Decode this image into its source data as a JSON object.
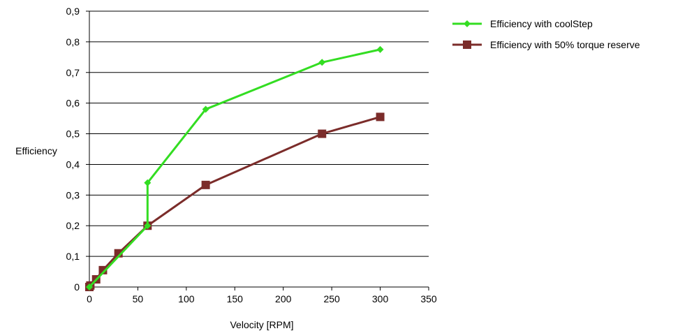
{
  "chart_data": {
    "type": "line",
    "title": "",
    "xlabel": "Velocity [RPM]",
    "ylabel": "Efficiency",
    "xlim": [
      0,
      350
    ],
    "ylim": [
      0,
      0.9
    ],
    "x_ticks": [
      0,
      50,
      100,
      150,
      200,
      250,
      300,
      350
    ],
    "x_tick_labels": [
      "0",
      "50",
      "100",
      "150",
      "200",
      "250",
      "300",
      "350"
    ],
    "y_ticks": [
      0,
      0.1,
      0.2,
      0.3,
      0.4,
      0.5,
      0.6,
      0.7,
      0.8,
      0.9
    ],
    "y_tick_labels": [
      "0",
      "0,1",
      "0,2",
      "0,3",
      "0,4",
      "0,5",
      "0,6",
      "0,7",
      "0,8",
      "0,9"
    ],
    "grid": "horizontal",
    "legend_position": "top-right outside",
    "series": [
      {
        "name": "Efficiency with coolStep",
        "color": "#33dd22",
        "marker": "diamond",
        "points": [
          [
            0,
            0
          ],
          [
            60,
            0.2
          ],
          [
            60,
            0.34
          ],
          [
            120,
            0.58
          ],
          [
            240,
            0.733
          ],
          [
            300,
            0.775
          ]
        ]
      },
      {
        "name": "Efficiency with 50% torque reserve",
        "color": "#7b2c2a",
        "marker": "square",
        "points": [
          [
            0,
            0
          ],
          [
            1,
            0.005
          ],
          [
            7,
            0.025
          ],
          [
            14,
            0.055
          ],
          [
            30,
            0.11
          ],
          [
            60,
            0.2
          ],
          [
            120,
            0.333
          ],
          [
            240,
            0.5
          ],
          [
            300,
            0.555
          ]
        ]
      }
    ]
  }
}
